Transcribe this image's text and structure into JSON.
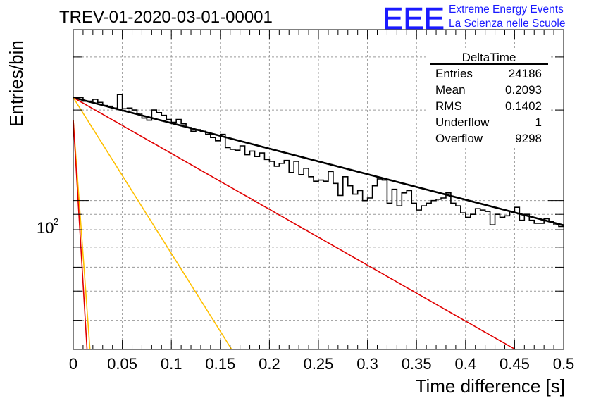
{
  "run_title": "TREV-01-2020-03-01-00001",
  "logo": {
    "text": "EEE",
    "line1": "Extreme Energy Events",
    "line2": "La Scienza nelle Scuole",
    "color": "#1a1aff"
  },
  "stats": {
    "title": "DeltaTime",
    "rows": [
      {
        "label": "Entries",
        "value": "24186"
      },
      {
        "label": "Mean",
        "value": "0.2093"
      },
      {
        "label": "RMS",
        "value": "0.1402"
      },
      {
        "label": "Underflow",
        "value": "1"
      },
      {
        "label": "Overflow",
        "value": "9298"
      }
    ]
  },
  "chart_data": {
    "type": "histogram",
    "title": "TREV-01-2020-03-01-00001",
    "xlabel": "Time difference [s]",
    "ylabel": "Entries/bin",
    "xlim": [
      0,
      0.5
    ],
    "ylim": [
      32,
      370
    ],
    "ylog": true,
    "grid": true,
    "x_ticks": [
      "0",
      "0.05",
      "0.1",
      "0.15",
      "0.2",
      "0.25",
      "0.3",
      "0.35",
      "0.4",
      "0.45",
      "0.5"
    ],
    "y_tick_label": {
      "base": "10",
      "exp": "2",
      "value": 100
    },
    "bin_width": 0.005,
    "bin_contents": [
      220,
      220,
      214,
      214,
      217,
      212,
      207,
      206,
      203,
      225,
      202,
      203,
      200,
      195,
      188,
      185,
      200,
      196,
      192,
      186,
      182,
      186,
      180,
      175,
      170,
      172,
      170,
      166,
      162,
      158,
      166,
      150,
      148,
      147,
      152,
      142,
      146,
      140,
      144,
      137,
      135,
      130,
      133,
      136,
      124,
      135,
      122,
      128,
      120,
      116,
      117,
      116,
      125,
      114,
      104,
      120,
      112,
      105,
      108,
      100,
      102,
      112,
      118,
      117,
      98,
      109,
      96,
      106,
      108,
      98,
      93,
      96,
      98,
      100,
      101,
      102,
      106,
      98,
      96,
      91,
      88,
      90,
      94,
      93,
      92,
      83,
      90,
      88,
      89,
      92,
      95,
      86,
      90,
      86,
      84,
      84,
      87,
      85,
      83,
      82
    ],
    "fits": [
      {
        "color": "#000000",
        "N0": 220,
        "tau": 0.5115
      },
      {
        "color": "#e00000",
        "N0": 220,
        "tau": 0.2338
      },
      {
        "color": "#ffc000",
        "N0": 220,
        "tau": 0.0838
      },
      {
        "color": "#ffc000",
        "N0": 185,
        "tau": 0.0097
      },
      {
        "color": "#e00000",
        "N0": 185,
        "tau": 0.008
      }
    ],
    "histogram_color": "#000000"
  }
}
